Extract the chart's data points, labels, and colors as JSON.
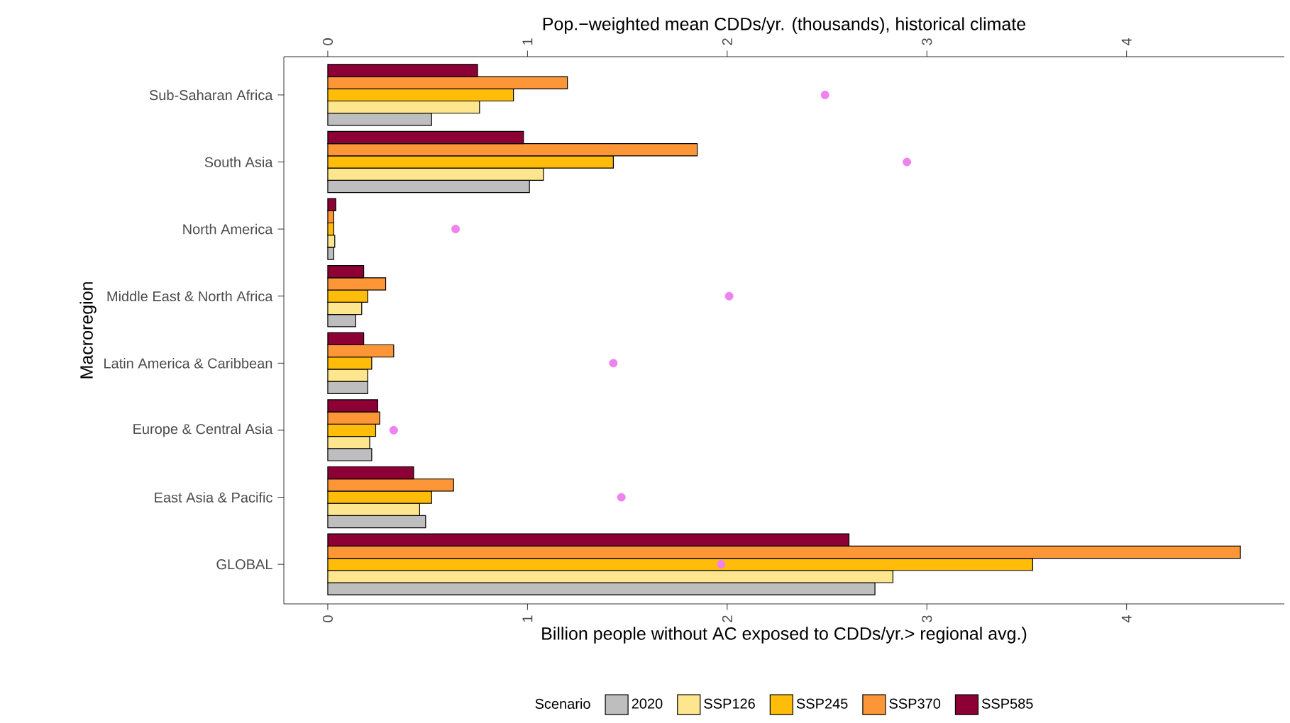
{
  "chart_data": {
    "type": "bar",
    "orientation": "horizontal",
    "x2label": "Pop.−weighted mean CDDs/yr. (thousands), historical climate",
    "xlabel": "Billion people without AC exposed to CDDs/yr.> regional avg.)",
    "ylabel": "Macroregion",
    "legend_title": "Scenario",
    "legend": "bottom",
    "categories": [
      "Sub-Saharan Africa",
      "South Asia",
      "North America",
      "Middle East & North Africa",
      "Latin America & Caribbean",
      "Europe & Central Asia",
      "East Asia & Pacific",
      "GLOBAL"
    ],
    "xlim": [
      -0.22,
      4.79
    ],
    "xticks": [
      0,
      1,
      2,
      3,
      4
    ],
    "x2lim": [
      -0.22,
      4.79
    ],
    "x2ticks": [
      0,
      1,
      2,
      3,
      4
    ],
    "series": [
      {
        "name": "2020",
        "color": "#bebebe",
        "values": [
          0.52,
          1.01,
          0.03,
          0.14,
          0.2,
          0.22,
          0.49,
          2.74
        ]
      },
      {
        "name": "SSP126",
        "color": "#fde68d",
        "values": [
          0.76,
          1.08,
          0.035,
          0.17,
          0.2,
          0.21,
          0.46,
          2.83
        ]
      },
      {
        "name": "SSP245",
        "color": "#ffbd0a",
        "values": [
          0.93,
          1.43,
          0.03,
          0.2,
          0.22,
          0.24,
          0.52,
          3.53
        ]
      },
      {
        "name": "SSP370",
        "color": "#fd9637",
        "values": [
          1.2,
          1.85,
          0.03,
          0.29,
          0.33,
          0.26,
          0.63,
          4.57
        ]
      },
      {
        "name": "SSP585",
        "color": "#8c0035",
        "values": [
          0.75,
          0.98,
          0.04,
          0.18,
          0.18,
          0.25,
          0.43,
          2.61
        ]
      },
      {
        "type": "scatter",
        "axis": "x2",
        "marker": "circle",
        "color": "#ee82ee",
        "values": [
          2.49,
          2.9,
          0.64,
          2.01,
          1.43,
          0.33,
          1.47,
          1.97
        ]
      }
    ]
  }
}
